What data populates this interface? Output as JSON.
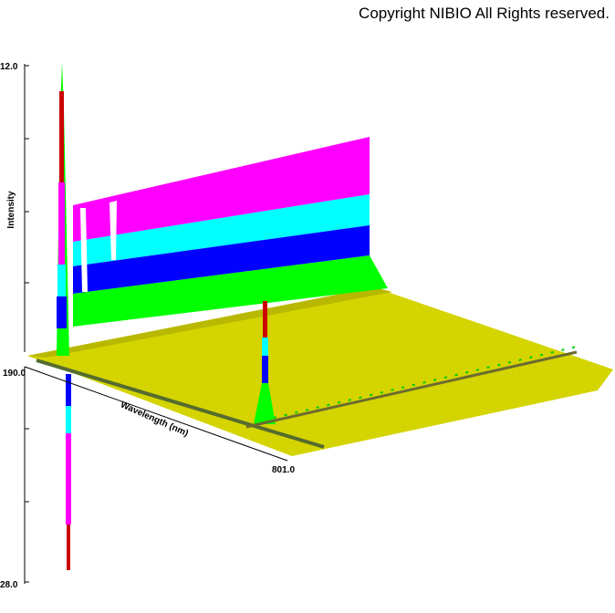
{
  "copyright": "Copyright NIBIO All Rights reserved.",
  "axes": {
    "z_label": "Intensity",
    "z_top": "12.0",
    "z_bottom": "28.0",
    "x_start": "190.0",
    "x_end": "801.0",
    "x_label": "Wavelength (nm)"
  }
}
